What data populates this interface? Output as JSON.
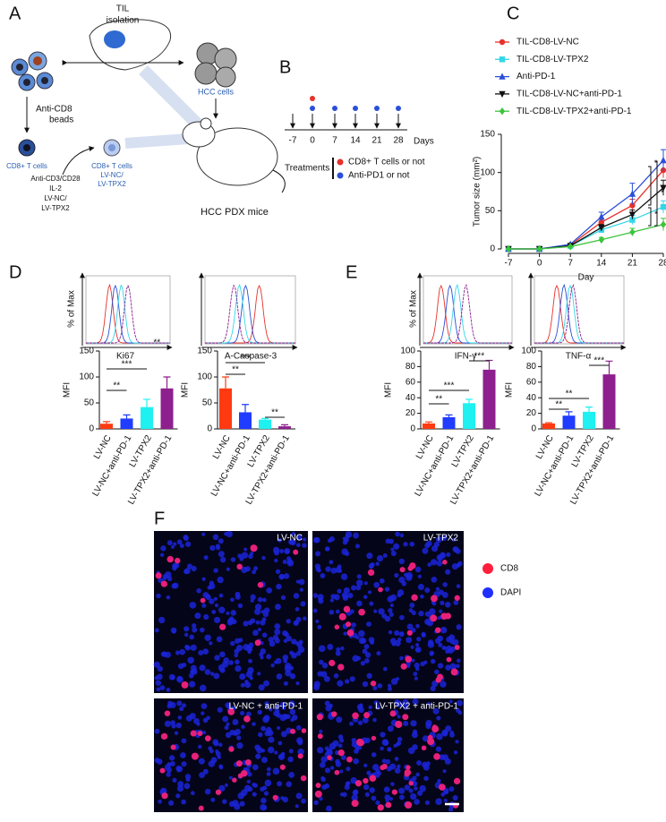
{
  "panel_a": {
    "letter": "A",
    "til": "TIL",
    "isolation": "isolation",
    "hcc_cells": "HCC cells",
    "anti_cd8": "Anti-CD8",
    "beads": "beads",
    "cd8_cells_left": "CD8+ T cells",
    "cd8_cells_right": "CD8+ T cells",
    "right_lines": [
      "LV-NC/",
      "LV-TPX2"
    ],
    "stimulation": [
      "Anti-CD3/CD28",
      "IL-2",
      "LV-NC/",
      "LV-TPX2"
    ],
    "mice": "HCC PDX mice"
  },
  "panel_b": {
    "letter": "B",
    "days": [
      "-7",
      "0",
      "7",
      "14",
      "21",
      "28"
    ],
    "days_label": "Days",
    "treatments": "Treatments",
    "legend": [
      "CD8+ T cells or not",
      "Anti-PD1 or not"
    ]
  },
  "panel_c": {
    "letter": "C"
  },
  "panel_d": {
    "letter": "D",
    "y_label": "% of Max",
    "histograms": [
      "Ki67",
      "A-Caspase-3"
    ]
  },
  "panel_e": {
    "letter": "E",
    "y_label": "% of Max",
    "histograms": [
      "IFN-γ",
      "TNF-α"
    ]
  },
  "panel_f": {
    "letter": "F",
    "images": [
      "LV-NC",
      "LV-TPX2",
      "LV-NC + anti-PD-1",
      "LV-TPX2 + anti-PD-1"
    ],
    "legend": [
      "CD8",
      "DAPI"
    ]
  },
  "chart_data": [
    {
      "type": "line",
      "y_label": "Tumor size (mm²)",
      "x_label": "Day",
      "x": [
        -7,
        0,
        7,
        14,
        21,
        28
      ],
      "xlim": [
        -7,
        28
      ],
      "xticks": [
        -7,
        0,
        7,
        14,
        21,
        28
      ],
      "ylim": [
        0,
        150
      ],
      "yticks": [
        0,
        50,
        100,
        150
      ],
      "series": [
        {
          "name": "TIL-CD8-LV-NC",
          "color": "#e8312a",
          "marker": "circle",
          "values": [
            0,
            0,
            5,
            35,
            57,
            103
          ],
          "errors": [
            0,
            0,
            1,
            5,
            8,
            10
          ]
        },
        {
          "name": "TIL-CD8-LV-TPX2",
          "color": "#33d6e8",
          "marker": "square",
          "values": [
            0,
            0,
            4,
            25,
            38,
            55
          ],
          "errors": [
            0,
            0,
            1,
            4,
            6,
            8
          ]
        },
        {
          "name": "Anti-PD-1",
          "color": "#2a4fd8",
          "marker": "triangle",
          "values": [
            0,
            0,
            6,
            42,
            72,
            116
          ],
          "errors": [
            0,
            0,
            1,
            6,
            14,
            14
          ]
        },
        {
          "name": "TIL-CD8-LV-NC+anti-PD-1",
          "color": "#111111",
          "marker": "triangle-down",
          "values": [
            0,
            0,
            4,
            28,
            45,
            80
          ],
          "errors": [
            0,
            0,
            1,
            4,
            6,
            10
          ]
        },
        {
          "name": "TIL-CD8-LV-TPX2+anti-PD-1",
          "color": "#3cc43c",
          "marker": "diamond",
          "values": [
            0,
            0,
            3,
            12,
            22,
            32
          ],
          "errors": [
            0,
            0,
            1,
            3,
            5,
            8
          ]
        }
      ],
      "annotations": [
        "*",
        "*",
        "*"
      ]
    },
    {
      "type": "bar",
      "y_label": "MFI",
      "categories": [
        "LV-NC",
        "LV-NC+anti-PD-1",
        "LV-TPX2",
        "LV-TPX2+anti-PD-1"
      ],
      "values": [
        10,
        20,
        42,
        78
      ],
      "errors": [
        4,
        7,
        15,
        22
      ],
      "colors": [
        "#ff3a10",
        "#1f3cff",
        "#1ff0f0",
        "#8e1f8e"
      ],
      "ylim": [
        0,
        150
      ],
      "yticks": [
        0,
        50,
        100,
        150
      ],
      "annotations": [
        "**",
        "***",
        "**"
      ]
    },
    {
      "type": "bar",
      "y_label": "MFI",
      "categories": [
        "LV-NC",
        "LV-NC+anti-PD-1",
        "LV-TPX2",
        "LV-TPX2+anti-PD-1"
      ],
      "values": [
        78,
        32,
        18,
        5
      ],
      "errors": [
        22,
        15,
        2,
        3
      ],
      "colors": [
        "#ff3a10",
        "#1f3cff",
        "#1ff0f0",
        "#8e1f8e"
      ],
      "ylim": [
        0,
        150
      ],
      "yticks": [
        0,
        50,
        100,
        150
      ],
      "annotations": [
        "**",
        "***",
        "**"
      ]
    },
    {
      "type": "bar",
      "y_label": "MFI",
      "categories": [
        "LV-NC",
        "LV-NC+anti-PD-1",
        "LV-TPX2",
        "LV-TPX2+anti-PD-1"
      ],
      "values": [
        7,
        15,
        33,
        76
      ],
      "errors": [
        2,
        3,
        5,
        12
      ],
      "colors": [
        "#ff3a10",
        "#1f3cff",
        "#1ff0f0",
        "#8e1f8e"
      ],
      "ylim": [
        0,
        100
      ],
      "yticks": [
        0,
        20,
        40,
        60,
        80,
        100
      ],
      "annotations": [
        "**",
        "***",
        "***"
      ]
    },
    {
      "type": "bar",
      "y_label": "MFI",
      "categories": [
        "LV-NC",
        "LV-NC+anti-PD-1",
        "LV-TPX2",
        "LV-TPX2+anti-PD-1"
      ],
      "values": [
        7,
        17,
        22,
        70
      ],
      "errors": [
        1,
        5,
        6,
        17
      ],
      "colors": [
        "#ff3a10",
        "#1f3cff",
        "#1ff0f0",
        "#8e1f8e"
      ],
      "ylim": [
        0,
        100
      ],
      "yticks": [
        0,
        20,
        40,
        60,
        80,
        100
      ],
      "annotations": [
        "**",
        "**",
        "***"
      ]
    }
  ]
}
